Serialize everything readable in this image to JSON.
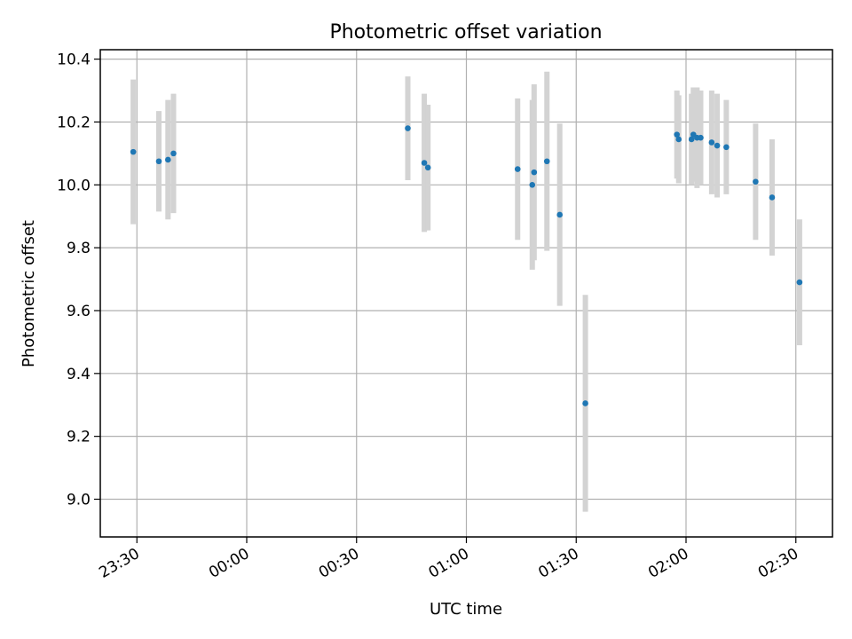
{
  "chart_data": {
    "type": "scatter",
    "title": "Photometric offset variation",
    "xlabel": "UTC time",
    "ylabel": "Photometric offset",
    "x_ticks": [
      "23:30",
      "00:00",
      "00:30",
      "01:00",
      "01:30",
      "02:00",
      "02:30"
    ],
    "y_ticks": [
      "9.0",
      "9.2",
      "9.4",
      "9.6",
      "9.8",
      "10.0",
      "10.2",
      "10.4"
    ],
    "xlim": [
      "23:20",
      "02:40"
    ],
    "ylim": [
      8.88,
      10.43
    ],
    "grid": true,
    "marker_color": "#1f77b4",
    "errorbar_color": "#d3d3d3",
    "points": [
      {
        "t": "23:29",
        "y": 10.105,
        "err": 0.23
      },
      {
        "t": "23:36",
        "y": 10.075,
        "err": 0.16
      },
      {
        "t": "23:38.5",
        "y": 10.08,
        "err": 0.19
      },
      {
        "t": "23:40",
        "y": 10.1,
        "err": 0.19
      },
      {
        "t": "00:44",
        "y": 10.18,
        "err": 0.165
      },
      {
        "t": "00:48.5",
        "y": 10.07,
        "err": 0.22
      },
      {
        "t": "00:49.5",
        "y": 10.055,
        "err": 0.2
      },
      {
        "t": "01:14",
        "y": 10.05,
        "err": 0.225
      },
      {
        "t": "01:18",
        "y": 10.0,
        "err": 0.27
      },
      {
        "t": "01:18.5",
        "y": 10.04,
        "err": 0.28
      },
      {
        "t": "01:22",
        "y": 10.075,
        "err": 0.285
      },
      {
        "t": "01:25.5",
        "y": 9.905,
        "err": 0.29
      },
      {
        "t": "01:32.5",
        "y": 9.305,
        "err": 0.345
      },
      {
        "t": "01:57.5",
        "y": 10.16,
        "err": 0.14
      },
      {
        "t": "01:58",
        "y": 10.145,
        "err": 0.14
      },
      {
        "t": "02:01.5",
        "y": 10.145,
        "err": 0.145
      },
      {
        "t": "02:02",
        "y": 10.16,
        "err": 0.15
      },
      {
        "t": "02:03",
        "y": 10.15,
        "err": 0.16
      },
      {
        "t": "02:04",
        "y": 10.15,
        "err": 0.15
      },
      {
        "t": "02:07",
        "y": 10.135,
        "err": 0.165
      },
      {
        "t": "02:08.5",
        "y": 10.125,
        "err": 0.165
      },
      {
        "t": "02:11",
        "y": 10.12,
        "err": 0.15
      },
      {
        "t": "02:19",
        "y": 10.01,
        "err": 0.185
      },
      {
        "t": "02:23.5",
        "y": 9.96,
        "err": 0.185
      },
      {
        "t": "02:31",
        "y": 9.69,
        "err": 0.2
      }
    ]
  }
}
